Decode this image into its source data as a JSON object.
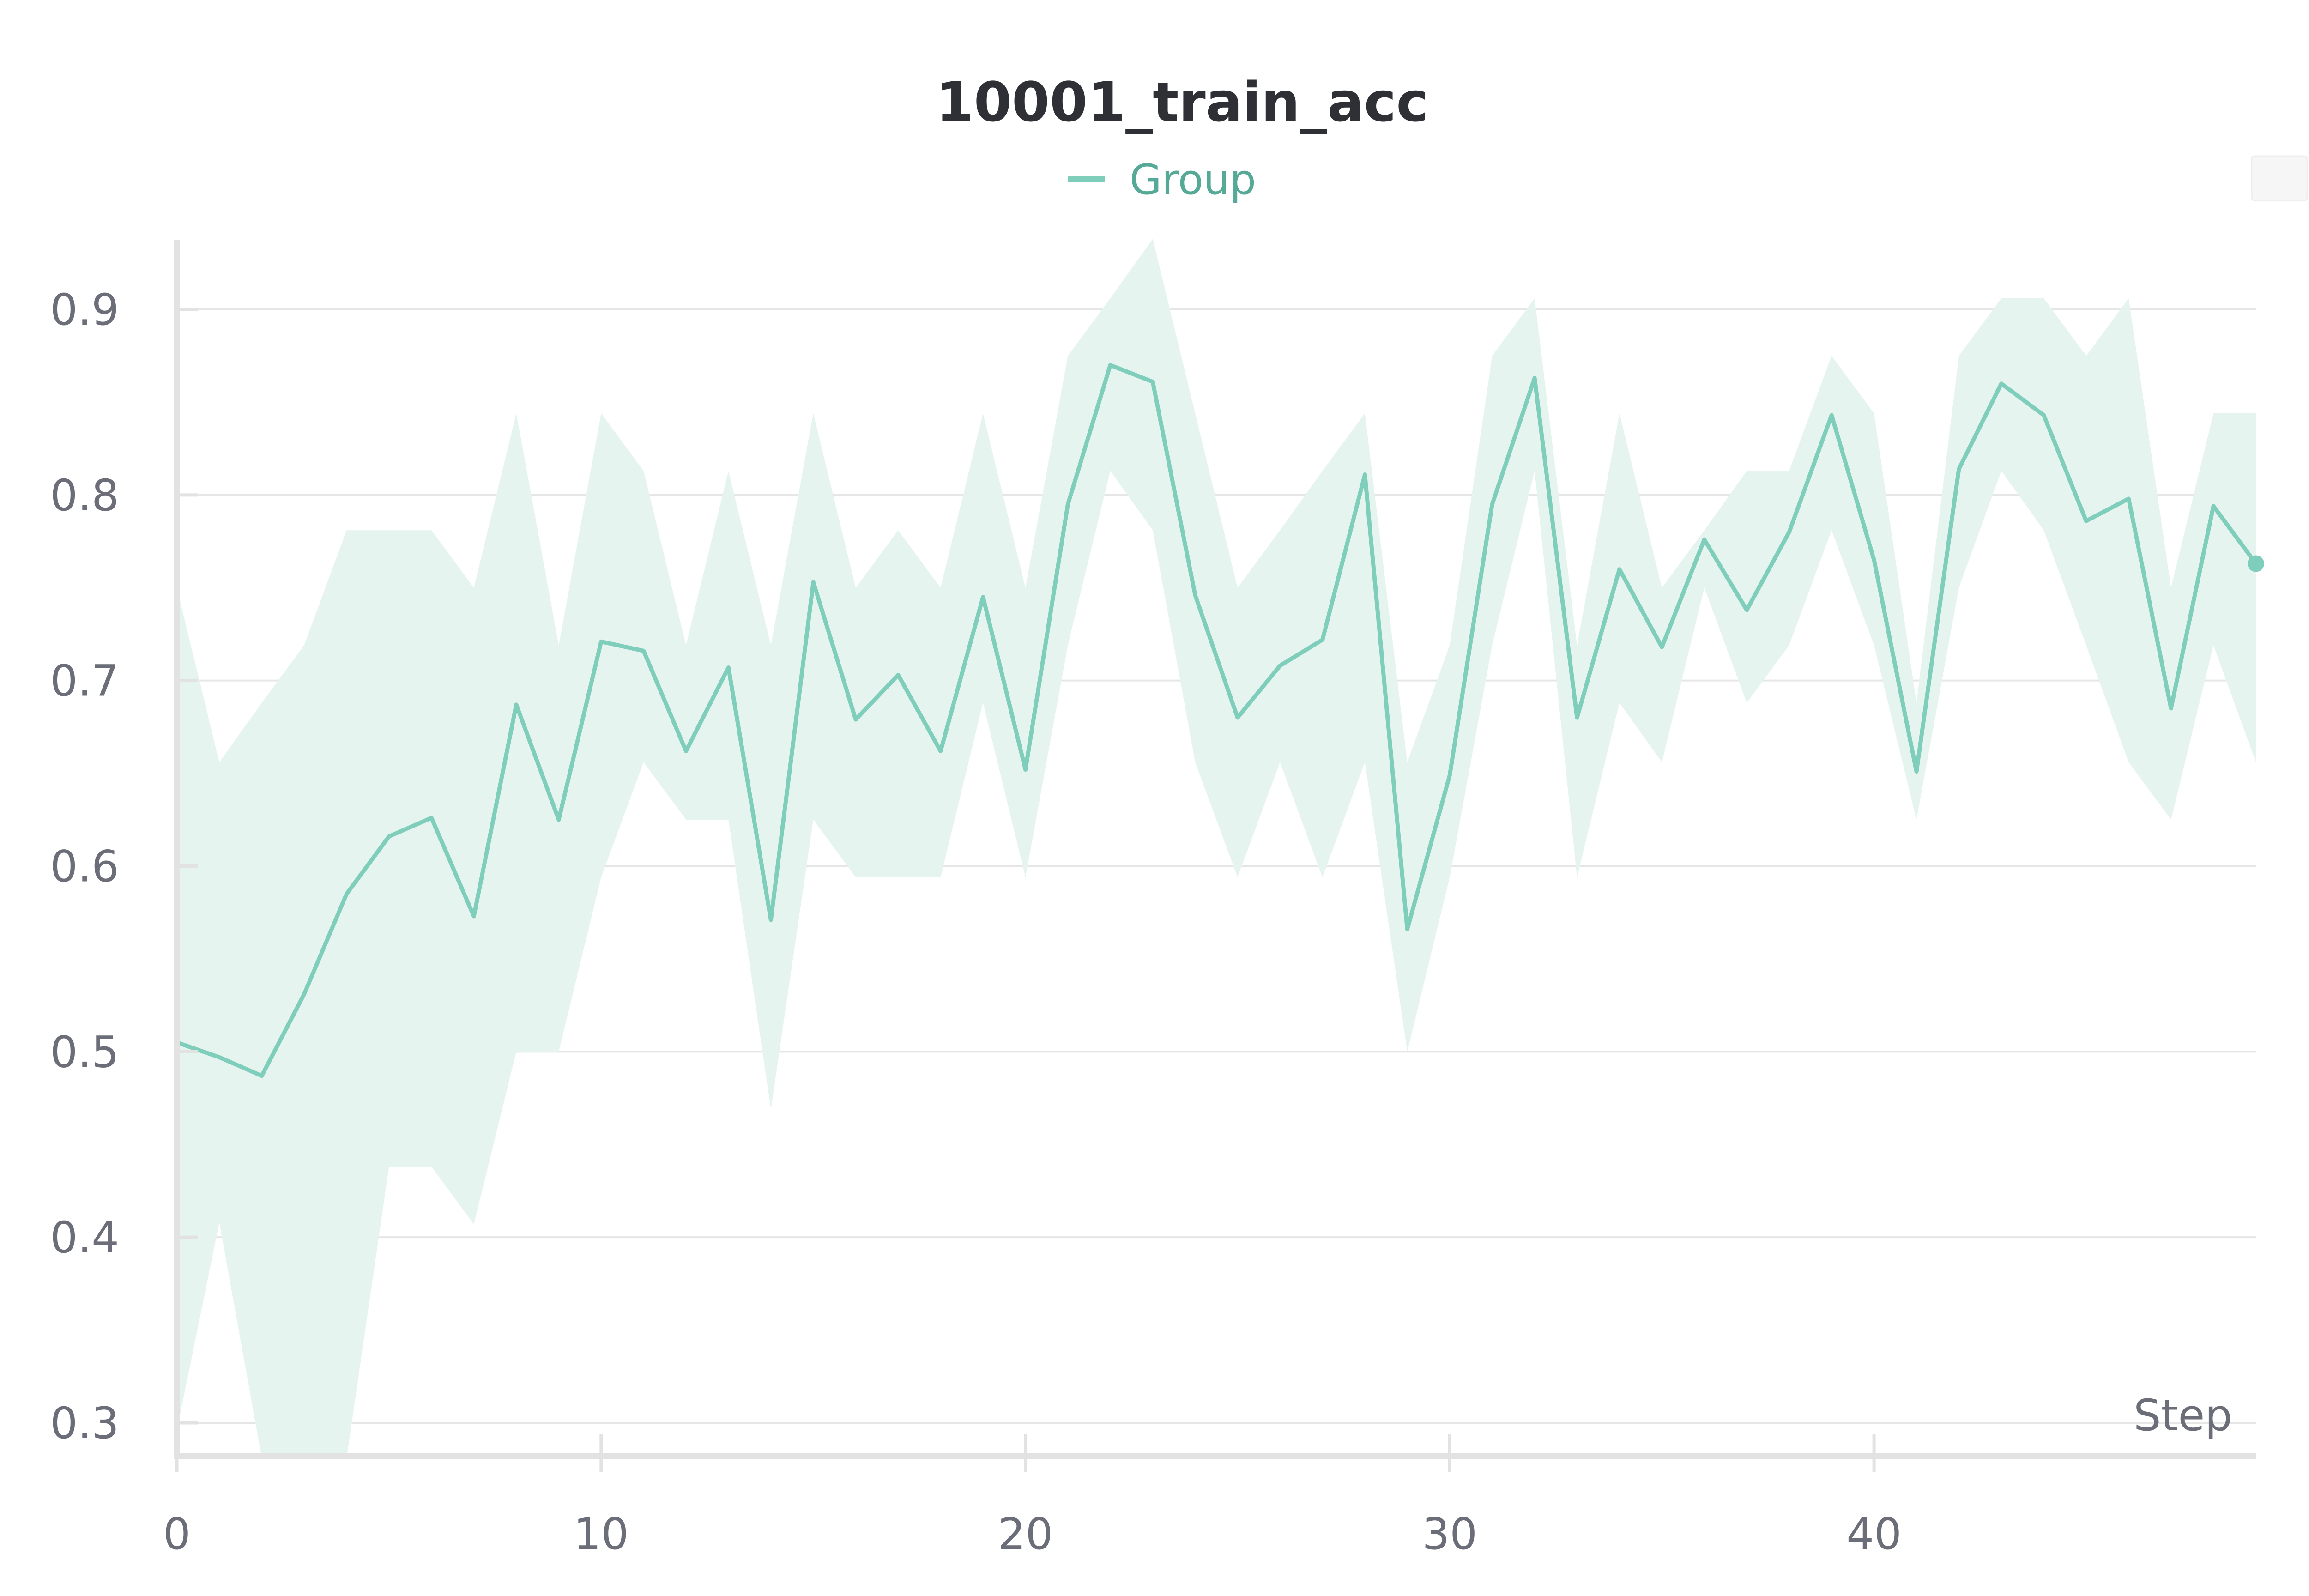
{
  "chart_data": {
    "type": "line",
    "title": "10001_train_acc",
    "xlabel": "Step",
    "ylabel": "",
    "xlim": [
      0,
      49
    ],
    "ylim": [
      0.28,
      0.94
    ],
    "x_ticks": [
      0,
      10,
      20,
      30,
      40
    ],
    "y_ticks": [
      0.3,
      0.4,
      0.5,
      0.6,
      0.7,
      0.8,
      0.9
    ],
    "grid": true,
    "legend_position": "top-center",
    "colors": {
      "line": "#7fcdbb",
      "band": "#e6f4f0",
      "legend_text": "#55a996",
      "title": "#2f3036",
      "tick_text": "#6b6d78",
      "grid": "#e6e6e6",
      "axis": "#e2e2e2"
    },
    "series": [
      {
        "name": "Group",
        "x": [
          0,
          1,
          2,
          3,
          4,
          5,
          6,
          7,
          8,
          9,
          10,
          11,
          12,
          13,
          14,
          15,
          16,
          17,
          18,
          19,
          20,
          21,
          22,
          23,
          24,
          25,
          26,
          27,
          28,
          29,
          30,
          31,
          32,
          33,
          34,
          35,
          36,
          37,
          38,
          39,
          40,
          41,
          42,
          43,
          44,
          45,
          46,
          47,
          48,
          49
        ],
        "y": [
          0.505,
          0.497,
          0.487,
          0.531,
          0.585,
          0.616,
          0.626,
          0.573,
          0.687,
          0.625,
          0.721,
          0.716,
          0.662,
          0.707,
          0.571,
          0.753,
          0.679,
          0.703,
          0.662,
          0.745,
          0.652,
          0.795,
          0.87,
          0.861,
          0.746,
          0.68,
          0.708,
          0.722,
          0.811,
          0.566,
          0.649,
          0.795,
          0.863,
          0.68,
          0.76,
          0.718,
          0.776,
          0.738,
          0.78,
          0.843,
          0.765,
          0.651,
          0.814,
          0.86,
          0.843,
          0.786,
          0.798,
          0.685,
          0.794,
          0.763
        ],
        "y_min": [
          0.296,
          0.408,
          0.281,
          0.281,
          0.281,
          0.438,
          0.438,
          0.407,
          0.5,
          0.5,
          0.594,
          0.656,
          0.625,
          0.625,
          0.469,
          0.625,
          0.594,
          0.594,
          0.594,
          0.688,
          0.594,
          0.719,
          0.813,
          0.781,
          0.656,
          0.594,
          0.656,
          0.594,
          0.656,
          0.5,
          0.594,
          0.719,
          0.813,
          0.594,
          0.688,
          0.656,
          0.75,
          0.688,
          0.719,
          0.781,
          0.719,
          0.625,
          0.75,
          0.813,
          0.781,
          0.719,
          0.656,
          0.625,
          0.719,
          0.656
        ],
        "y_max": [
          0.75,
          0.656,
          0.688,
          0.719,
          0.781,
          0.781,
          0.781,
          0.75,
          0.844,
          0.719,
          0.844,
          0.813,
          0.719,
          0.813,
          0.719,
          0.844,
          0.75,
          0.781,
          0.75,
          0.844,
          0.75,
          0.875,
          0.906,
          0.938,
          0.844,
          0.75,
          0.781,
          0.813,
          0.844,
          0.656,
          0.719,
          0.875,
          0.906,
          0.719,
          0.844,
          0.75,
          0.781,
          0.813,
          0.813,
          0.875,
          0.844,
          0.688,
          0.875,
          0.906,
          0.906,
          0.875,
          0.906,
          0.75,
          0.844,
          0.844
        ]
      }
    ]
  }
}
